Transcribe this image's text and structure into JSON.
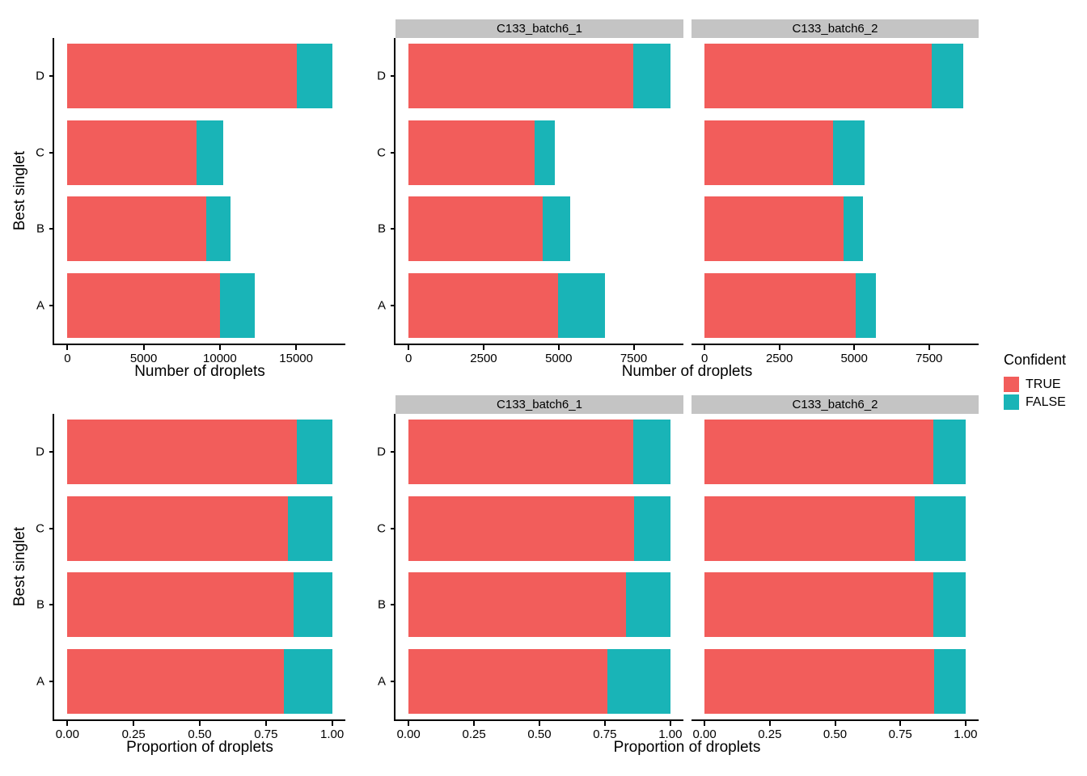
{
  "figure": {
    "background": "#FFFFFF",
    "axis_color": "#000000",
    "strip_bg": "#C4C4C4",
    "bar_true_color": "#F25D5B",
    "bar_false_color": "#19B4B7"
  },
  "legend": {
    "title": "Confident",
    "entries": [
      {
        "label": "TRUE",
        "color": "#F25D5B"
      },
      {
        "label": "FALSE",
        "color": "#19B4B7"
      }
    ]
  },
  "chart_data": [
    {
      "id": "droplet-counts-combined",
      "type": "bar",
      "orientation": "horizontal",
      "stacked": true,
      "grid": false,
      "legend_position": "right",
      "xlabel": "Number of droplets",
      "ylabel": "Best singlet",
      "categories": [
        "A",
        "B",
        "C",
        "D"
      ],
      "series": [
        {
          "name": "TRUE",
          "values": [
            10020,
            9120,
            8490,
            15070
          ]
        },
        {
          "name": "FALSE",
          "values": [
            2250,
            1560,
            1710,
            2290
          ]
        }
      ],
      "xticks": [
        0,
        5000,
        10000,
        15000
      ],
      "xtick_labels": [
        "0",
        "5000",
        "10000",
        "15000"
      ],
      "xlim": [
        0,
        17360
      ]
    },
    {
      "id": "droplet-counts-by-sample",
      "type": "bar",
      "orientation": "horizontal",
      "stacked": true,
      "grid": false,
      "xlabel": "Number of droplets",
      "ylabel": "Best singlet",
      "categories": [
        "A",
        "B",
        "C",
        "D"
      ],
      "facets": [
        {
          "label": "C133_batch6_1",
          "series": [
            {
              "name": "TRUE",
              "values": [
                4980,
                4470,
                4190,
                7480
              ]
            },
            {
              "name": "FALSE",
              "values": [
                1570,
                910,
                670,
                1240
              ]
            }
          ]
        },
        {
          "label": "C133_batch6_2",
          "series": [
            {
              "name": "TRUE",
              "values": [
                5040,
                4650,
                4300,
                7590
              ]
            },
            {
              "name": "FALSE",
              "values": [
                680,
                650,
                1050,
                1050
              ]
            }
          ]
        }
      ],
      "xticks": [
        0,
        2500,
        5000,
        7500
      ],
      "xtick_labels": [
        "0",
        "2500",
        "5000",
        "7500"
      ],
      "xlim": [
        0,
        8720
      ]
    },
    {
      "id": "droplet-proportions-combined",
      "type": "bar",
      "orientation": "horizontal",
      "stacked": true,
      "grid": false,
      "xlabel": "Proportion of droplets",
      "ylabel": "Best singlet",
      "categories": [
        "A",
        "B",
        "C",
        "D"
      ],
      "series": [
        {
          "name": "TRUE",
          "values": [
            0.817,
            0.854,
            0.832,
            0.868
          ]
        },
        {
          "name": "FALSE",
          "values": [
            0.183,
            0.146,
            0.168,
            0.132
          ]
        }
      ],
      "xticks": [
        0,
        0.25,
        0.5,
        0.75,
        1
      ],
      "xtick_labels": [
        "0.00",
        "0.25",
        "0.50",
        "0.75",
        "1.00"
      ],
      "xlim": [
        0,
        1
      ]
    },
    {
      "id": "droplet-proportions-by-sample",
      "type": "bar",
      "orientation": "horizontal",
      "stacked": true,
      "grid": false,
      "xlabel": "Proportion of droplets",
      "ylabel": "Best singlet",
      "categories": [
        "A",
        "B",
        "C",
        "D"
      ],
      "facets": [
        {
          "label": "C133_batch6_1",
          "series": [
            {
              "name": "TRUE",
              "values": [
                0.76,
                0.831,
                0.863,
                0.858
              ]
            },
            {
              "name": "FALSE",
              "values": [
                0.24,
                0.169,
                0.137,
                0.142
              ]
            }
          ]
        },
        {
          "label": "C133_batch6_2",
          "series": [
            {
              "name": "TRUE",
              "values": [
                0.881,
                0.877,
                0.805,
                0.878
              ]
            },
            {
              "name": "FALSE",
              "values": [
                0.119,
                0.123,
                0.195,
                0.122
              ]
            }
          ]
        }
      ],
      "xticks": [
        0,
        0.25,
        0.5,
        0.75,
        1
      ],
      "xtick_labels": [
        "0.00",
        "0.25",
        "0.50",
        "0.75",
        "1.00"
      ],
      "xlim": [
        0,
        1
      ]
    }
  ]
}
